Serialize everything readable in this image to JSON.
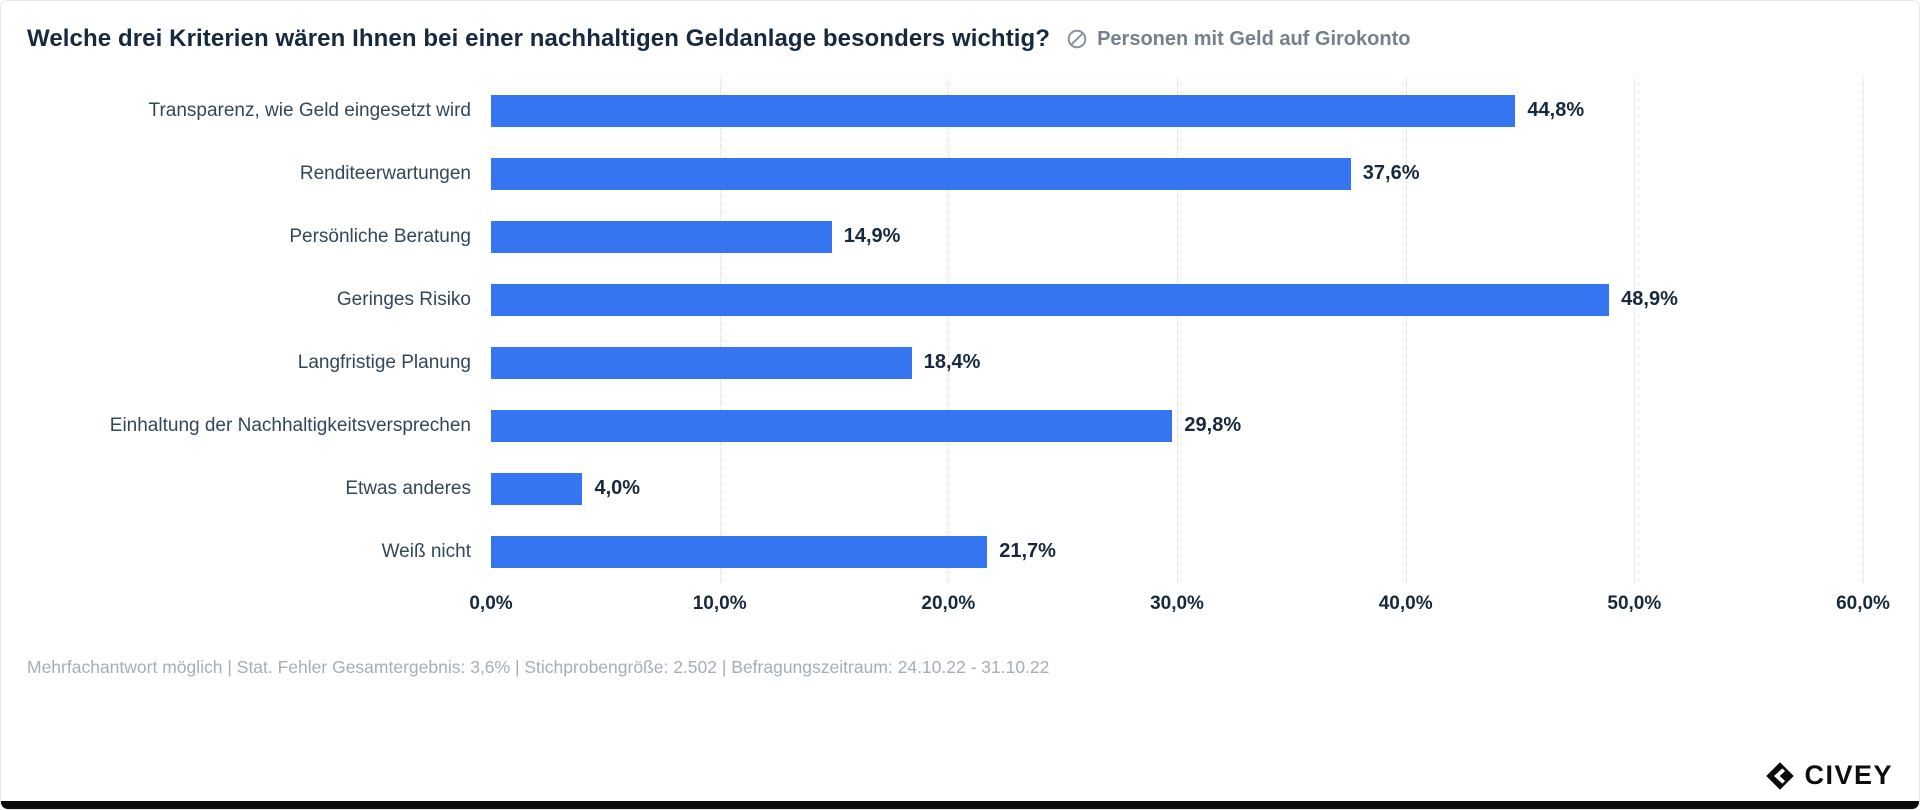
{
  "header": {
    "title": "Welche drei Kriterien wären Ihnen bei einer nachhaltigen Geldanlage besonders wichtig?",
    "audience_icon": "slashed-circle-icon",
    "audience_label": "Personen mit Geld auf Girokonto"
  },
  "chart_data": {
    "type": "bar",
    "orientation": "horizontal",
    "categories": [
      "Transparenz, wie Geld eingesetzt wird",
      "Renditeerwartungen",
      "Persönliche Beratung",
      "Geringes Risiko",
      "Langfristige Planung",
      "Einhaltung der Nachhaltigkeitsversprechen",
      "Etwas anderes",
      "Weiß nicht"
    ],
    "values": [
      44.8,
      37.6,
      14.9,
      48.9,
      18.4,
      29.8,
      4.0,
      21.7
    ],
    "value_labels": [
      "44,8%",
      "37,6%",
      "14,9%",
      "48,9%",
      "18,4%",
      "29,8%",
      "4,0%",
      "21,7%"
    ],
    "xlim": [
      0,
      60
    ],
    "x_ticks": [
      "0,0%",
      "10,0%",
      "20,0%",
      "30,0%",
      "40,0%",
      "50,0%",
      "60,0%"
    ],
    "bar_color": "#3575F2",
    "grid": "dotted-vertical",
    "legend": "none"
  },
  "footer": {
    "note": "Mehrfachantwort möglich | Stat. Fehler Gesamtergebnis: 3,6% | Stichprobengröße: 2.502 | Befragungszeitraum: 24.10.22 - 31.10.22"
  },
  "branding": {
    "logo_text": "CIVEY"
  }
}
